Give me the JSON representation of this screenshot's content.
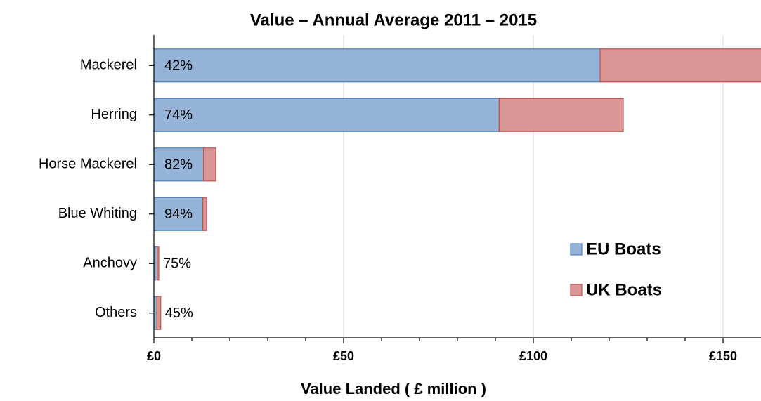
{
  "chart_data": {
    "type": "stacked_barh",
    "title": "Value – Annual Average 2011 – 2015",
    "x_label": "Value Landed ( £ million )",
    "categories": [
      "Mackerel",
      "Herring",
      "Horse Mackerel",
      "Blue Whiting",
      "Anchovy",
      "Others"
    ],
    "series": [
      {
        "name": "EU Boats",
        "color": "#95b3d7",
        "values": [
          117.6,
          91,
          13.1,
          12.9,
          0.9,
          0.8
        ]
      },
      {
        "name": "UK Boats",
        "color": "#d99694",
        "values": [
          45,
          32.7,
          3.2,
          1.0,
          0.4,
          1.0
        ]
      }
    ],
    "bar_labels": [
      "42%",
      "74%",
      "82%",
      "94%",
      "75%",
      "45%"
    ],
    "xlim": [
      0,
      160
    ],
    "xticks": [
      {
        "value": 0,
        "label": "£0"
      },
      {
        "value": 50,
        "label": "£50"
      },
      {
        "value": 100,
        "label": "£100"
      },
      {
        "value": 150,
        "label": "£150"
      }
    ],
    "minor_xticks": [
      10,
      20,
      30,
      40,
      60,
      70,
      80,
      90,
      110,
      120,
      130,
      140
    ],
    "grid": true
  }
}
